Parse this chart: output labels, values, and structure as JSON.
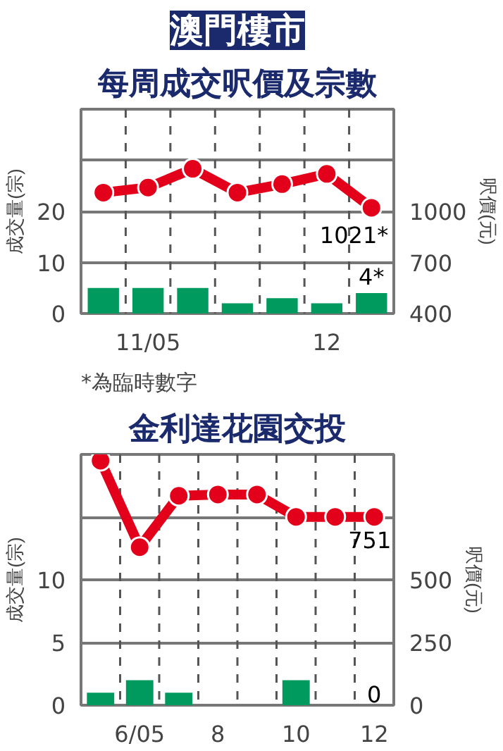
{
  "chart_data": [
    {
      "type": "bar",
      "title": "澳門樓市",
      "subtitle": "每周成交呎價及宗數",
      "ylabel": "成交量(宗)",
      "y2label": "呎價(元)",
      "categories": [
        null,
        "11/05",
        null,
        null,
        null,
        "12",
        null
      ],
      "ylim": [
        0,
        40
      ],
      "yticks": [
        0,
        10,
        20,
        {
          "value": 30,
          "label": null
        }
      ],
      "y2lim": [
        400,
        1600
      ],
      "y2ticks": [
        400,
        700,
        1000
      ],
      "grid": "y",
      "marker": "circle",
      "series": [
        {
          "color": "#009a5e",
          "values": [
            5,
            5,
            5,
            2,
            3,
            2,
            4
          ],
          "value_labels": [
            null,
            null,
            null,
            null,
            null,
            null,
            "4*"
          ]
        },
        {
          "type": "line",
          "axis": "y2",
          "color": "#e2001a",
          "values": [
            1110,
            1140,
            1250,
            1110,
            1160,
            1220,
            1021
          ],
          "value_labels": [
            null,
            null,
            null,
            null,
            null,
            null,
            "1021*"
          ]
        }
      ],
      "annotations": [
        "*為臨時數字"
      ]
    },
    {
      "type": "bar",
      "title": "金利達花園交投",
      "ylabel": "成交量(宗)",
      "y2label": "呎價(元)",
      "categories": [
        null,
        "6/05",
        null,
        "8",
        null,
        "10",
        null,
        "12"
      ],
      "ylim": [
        0,
        20
      ],
      "yticks": [
        0,
        5,
        10,
        {
          "value": 15,
          "label": null
        }
      ],
      "y2lim": [
        0,
        1000
      ],
      "y2ticks": [
        0,
        250,
        500
      ],
      "grid": "y",
      "series": [
        {
          "color": "#009a5e",
          "values": [
            1,
            2,
            1,
            0,
            0,
            2,
            0,
            0
          ],
          "value_labels": [
            null,
            null,
            null,
            null,
            null,
            null,
            null,
            "0"
          ]
        },
        {
          "type": "line",
          "axis": "y2",
          "color": "#e2001a",
          "values": [
            975,
            630,
            835,
            840,
            840,
            751,
            751,
            751
          ],
          "value_labels": [
            null,
            null,
            null,
            null,
            null,
            null,
            null,
            "751"
          ]
        }
      ],
      "marker": "circle"
    }
  ]
}
